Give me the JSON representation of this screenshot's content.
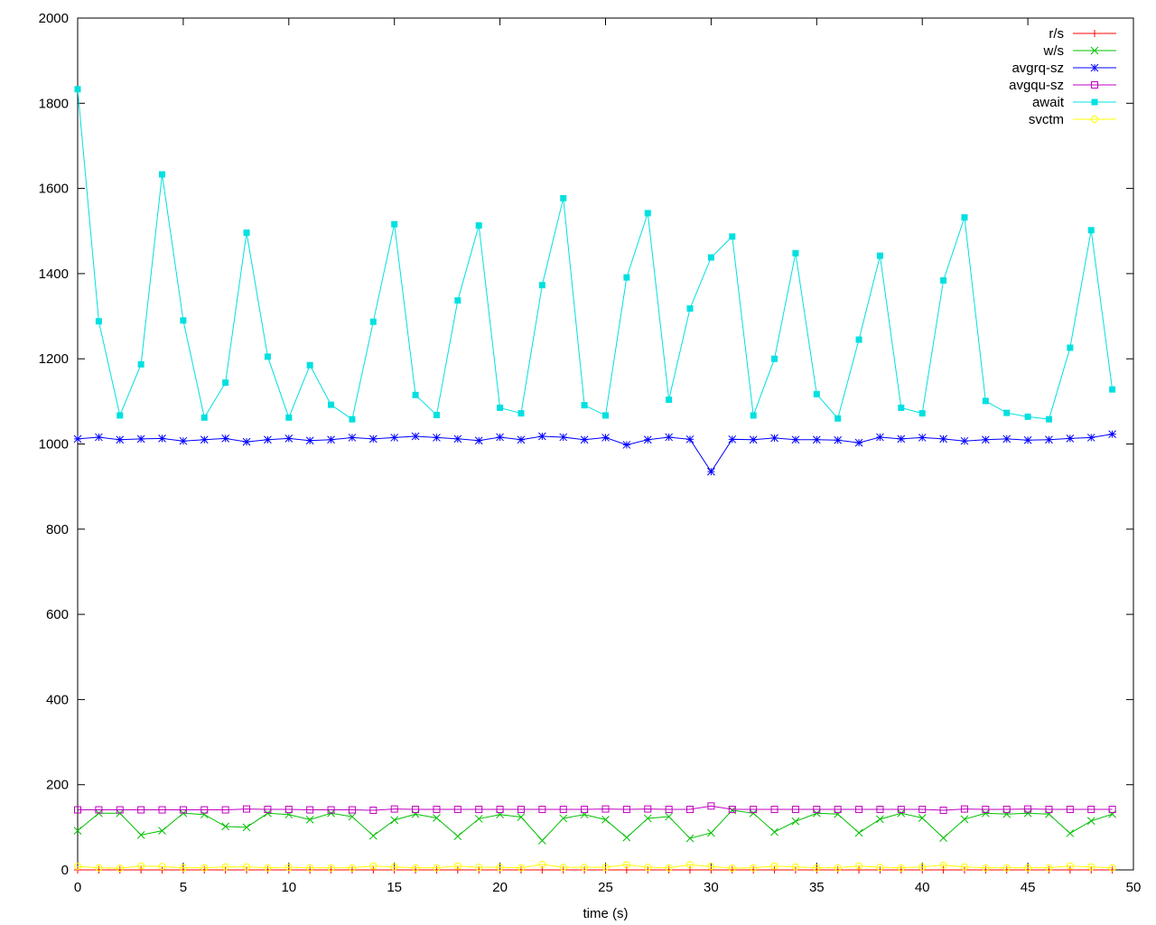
{
  "chart_data": {
    "type": "line",
    "title": "",
    "xlabel": "time (s)",
    "ylabel": "",
    "xlim": [
      0,
      50
    ],
    "ylim": [
      0,
      2000
    ],
    "xticks": [
      0,
      5,
      10,
      15,
      20,
      25,
      30,
      35,
      40,
      45,
      50
    ],
    "yticks": [
      0,
      200,
      400,
      600,
      800,
      1000,
      1200,
      1400,
      1600,
      1800,
      2000
    ],
    "grid": false,
    "legend_position": "top-right",
    "x": [
      0,
      1,
      2,
      3,
      4,
      5,
      6,
      7,
      8,
      9,
      10,
      11,
      12,
      13,
      14,
      15,
      16,
      17,
      18,
      19,
      20,
      21,
      22,
      23,
      24,
      25,
      26,
      27,
      28,
      29,
      30,
      31,
      32,
      33,
      34,
      35,
      36,
      37,
      38,
      39,
      40,
      41,
      42,
      43,
      44,
      45,
      46,
      47,
      48,
      49
    ],
    "series": [
      {
        "name": "r/s",
        "color": "#ff0000",
        "marker": "plus",
        "values": [
          0,
          0,
          0,
          0,
          0,
          0,
          0,
          0,
          0,
          0,
          0,
          0,
          0,
          0,
          0,
          0,
          0,
          0,
          0,
          0,
          0,
          0,
          0,
          0,
          0,
          0,
          0,
          0,
          0,
          0,
          0,
          0,
          0,
          0,
          0,
          0,
          0,
          0,
          0,
          0,
          0,
          0,
          0,
          0,
          0,
          0,
          0,
          0,
          0,
          0
        ]
      },
      {
        "name": "w/s",
        "color": "#00c000",
        "marker": "cross",
        "values": [
          92,
          133,
          133,
          82,
          92,
          133,
          130,
          102,
          100,
          133,
          130,
          118,
          133,
          125,
          80,
          117,
          131,
          122,
          79,
          120,
          130,
          124,
          69,
          121,
          130,
          118,
          76,
          121,
          125,
          74,
          87,
          140,
          133,
          89,
          114,
          133,
          131,
          87,
          119,
          133,
          122,
          75,
          119,
          133,
          131,
          133,
          131,
          86,
          115,
          131
        ]
      },
      {
        "name": "avgrq-sz",
        "color": "#0000ff",
        "marker": "star",
        "values": [
          1012,
          1016,
          1010,
          1012,
          1013,
          1007,
          1010,
          1013,
          1005,
          1010,
          1013,
          1008,
          1010,
          1015,
          1012,
          1015,
          1018,
          1015,
          1012,
          1008,
          1016,
          1010,
          1018,
          1016,
          1010,
          1015,
          998,
          1010,
          1016,
          1011,
          935,
          1011,
          1010,
          1014,
          1010,
          1010,
          1009,
          1003,
          1016,
          1012,
          1015,
          1012,
          1007,
          1010,
          1012,
          1009,
          1010,
          1013,
          1015,
          1023
        ]
      },
      {
        "name": "avgqu-sz",
        "color": "#c000c0",
        "marker": "open-square",
        "values": [
          141,
          141,
          141,
          141,
          141,
          141,
          141,
          141,
          143,
          142,
          142,
          141,
          141,
          141,
          140,
          143,
          142,
          142,
          142,
          142,
          142,
          142,
          142,
          142,
          142,
          143,
          142,
          143,
          142,
          142,
          150,
          142,
          142,
          142,
          142,
          142,
          142,
          142,
          142,
          142,
          142,
          140,
          143,
          142,
          142,
          143,
          142,
          142,
          142,
          142
        ]
      },
      {
        "name": "await",
        "color": "#00e0e0",
        "marker": "filled-square",
        "values": [
          1833,
          1288,
          1067,
          1187,
          1633,
          1290,
          1062,
          1144,
          1496,
          1205,
          1062,
          1185,
          1092,
          1058,
          1287,
          1516,
          1115,
          1068,
          1337,
          1513,
          1085,
          1072,
          1373,
          1577,
          1091,
          1067,
          1391,
          1542,
          1104,
          1318,
          1438,
          1487,
          1067,
          1200,
          1448,
          1117,
          1060,
          1245,
          1442,
          1085,
          1072,
          1384,
          1532,
          1101,
          1073,
          1064,
          1058,
          1226,
          1502,
          1128
        ]
      },
      {
        "name": "svctm",
        "color": "#ffff00",
        "marker": "open-circle",
        "values": [
          8,
          5,
          4,
          9,
          8,
          5,
          5,
          7,
          7,
          5,
          6,
          5,
          5,
          5,
          9,
          7,
          5,
          5,
          9,
          6,
          6,
          5,
          13,
          6,
          6,
          6,
          12,
          6,
          5,
          12,
          8,
          4,
          5,
          9,
          7,
          5,
          5,
          9,
          6,
          5,
          7,
          11,
          7,
          5,
          5,
          5,
          5,
          9,
          7,
          5
        ]
      }
    ]
  }
}
